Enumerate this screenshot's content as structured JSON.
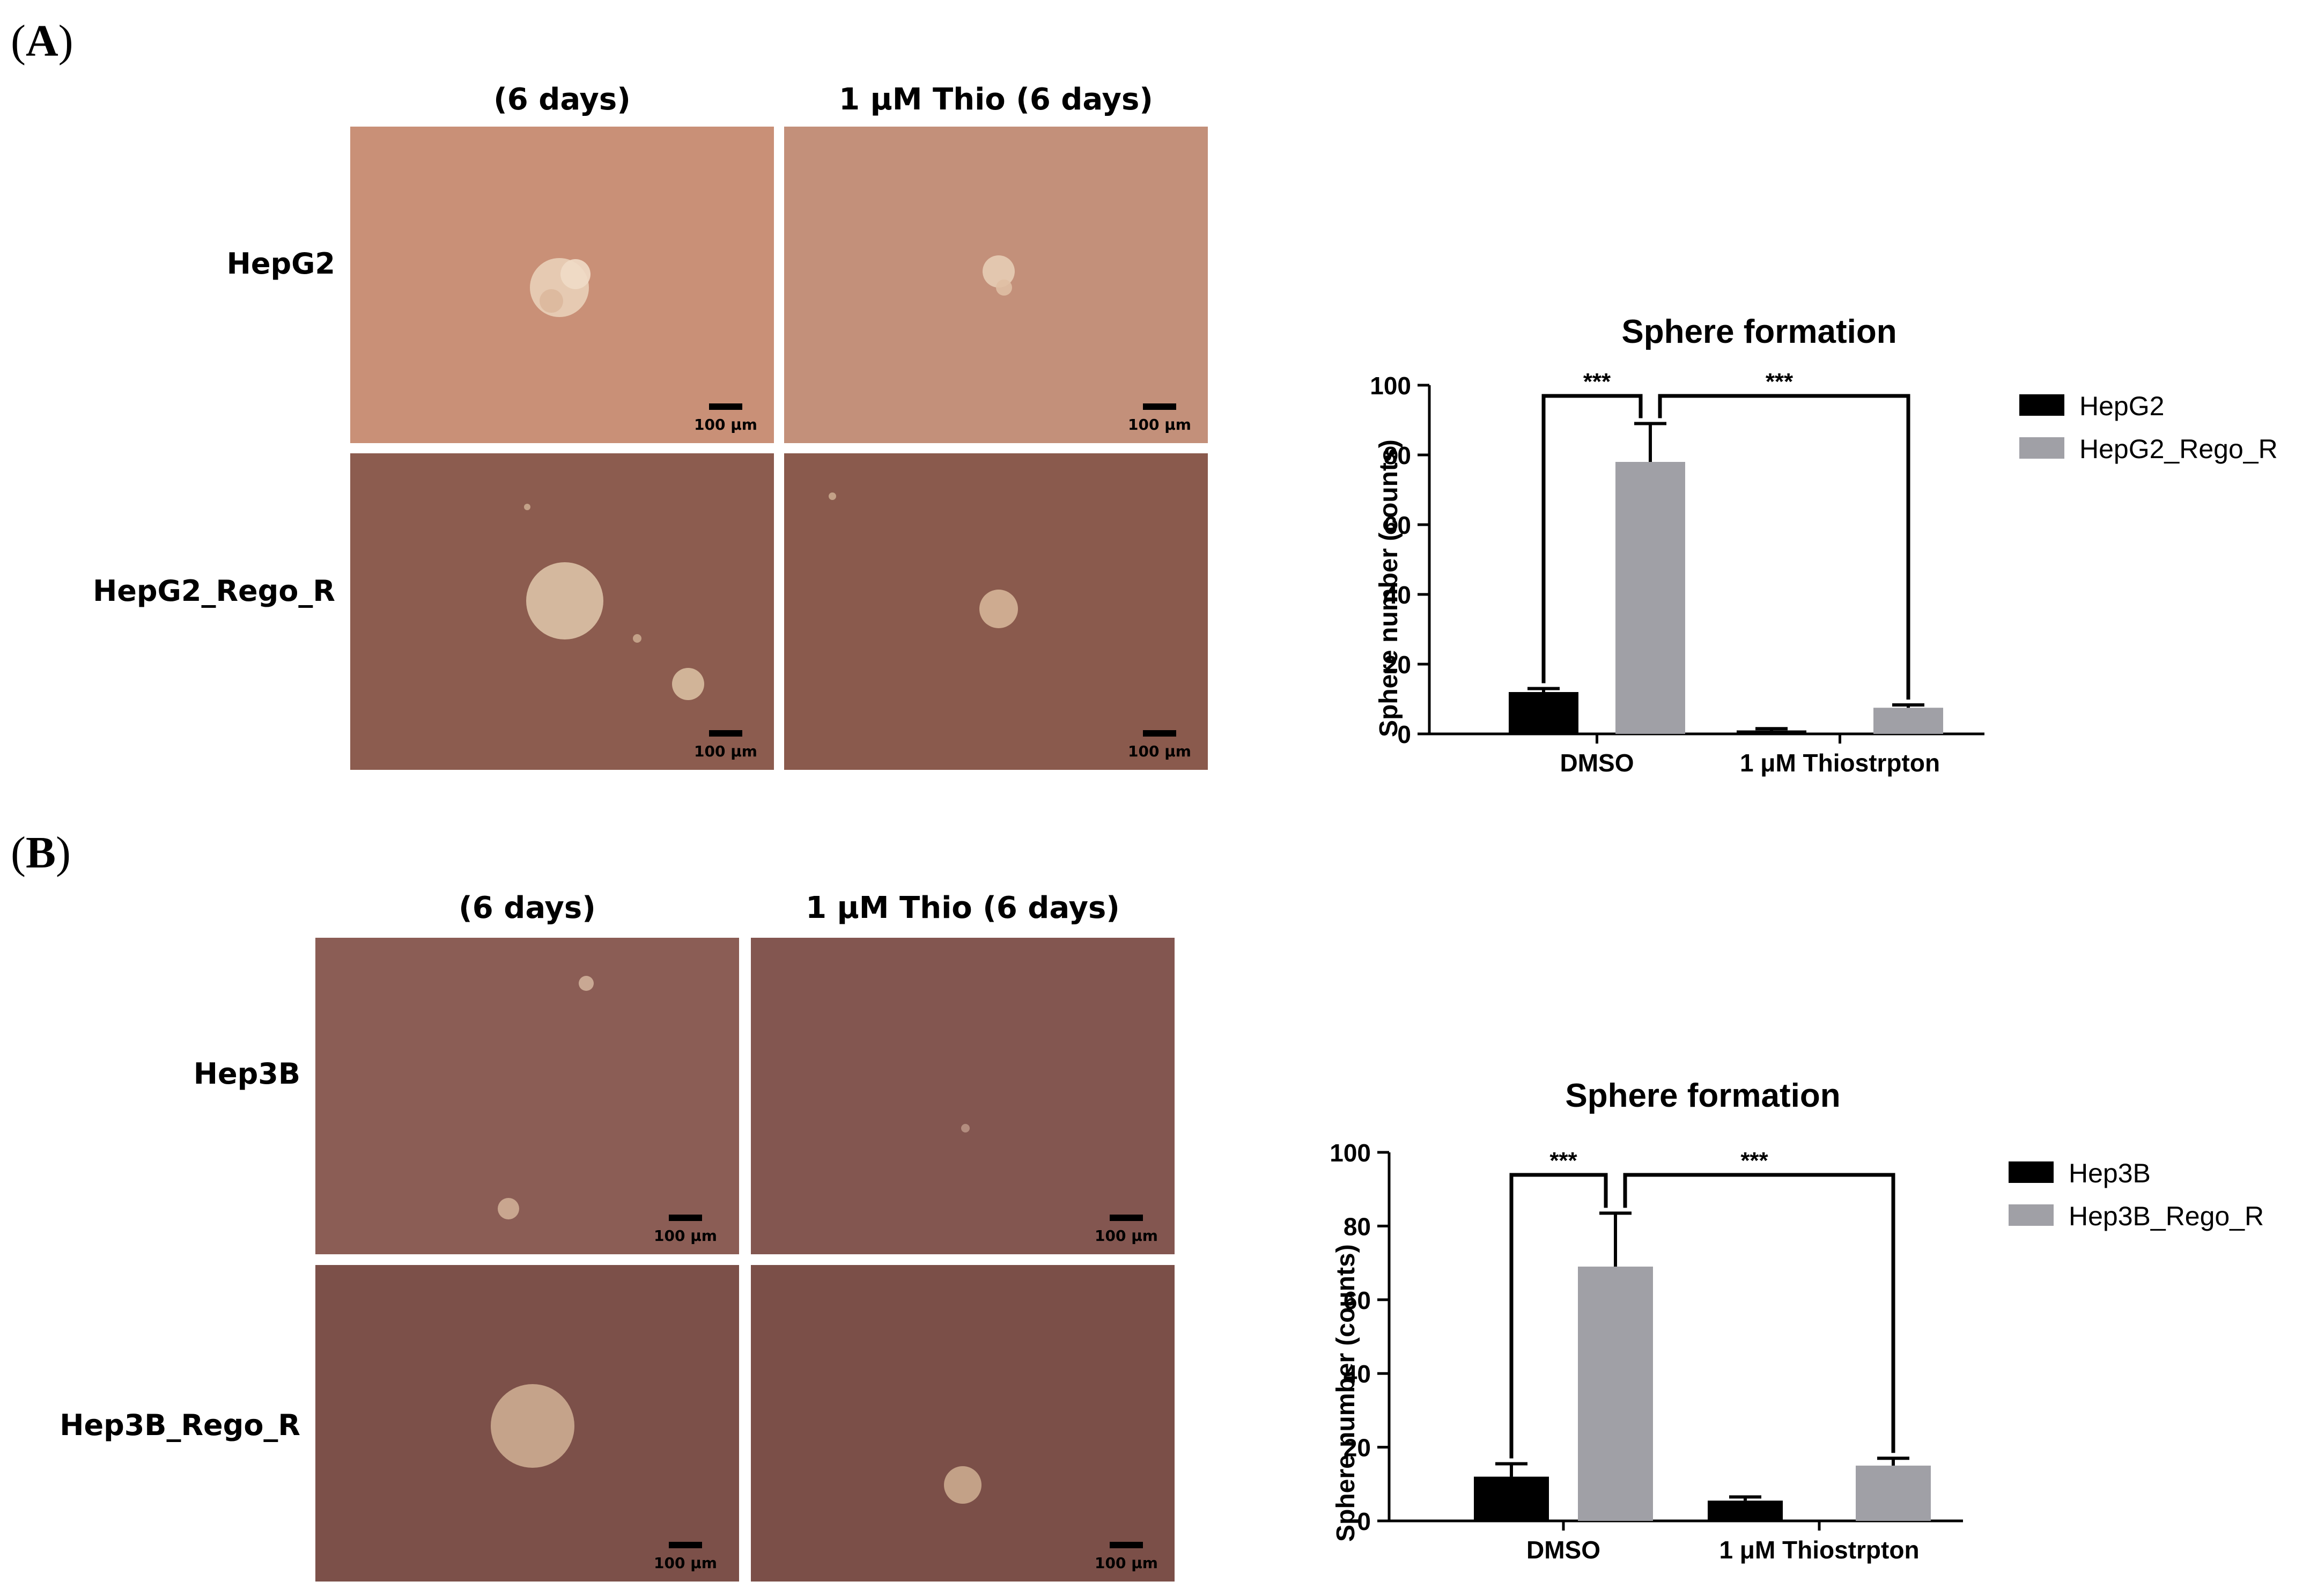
{
  "panels": [
    {
      "letter": "A",
      "columns": [
        "(6 days)",
        "1 μM Thio (6 days)"
      ],
      "rows": [
        "HepG2",
        "HepG2_Rego_R"
      ],
      "scale_label": "100 μm",
      "colors": {
        "top": "#c99077",
        "bottom": "#8c5c4f"
      }
    },
    {
      "letter": "B",
      "columns": [
        "(6 days)",
        "1 μM Thio (6 days)"
      ],
      "rows": [
        "Hep3B",
        "Hep3B_Rego_R"
      ],
      "scale_label": "100 μm",
      "colors": {
        "top": "#8b5d55",
        "bottom": "#7c5049"
      }
    }
  ],
  "chart_data": [
    {
      "type": "bar",
      "title": "Sphere formation",
      "ylabel": "Sphere  number (counts)",
      "xlabel": "",
      "categories": [
        "DMSO",
        "1 μM Thiostrpton"
      ],
      "series": [
        {
          "name": "HepG2",
          "color": "#000000",
          "values": [
            12,
            1
          ],
          "errors": [
            1,
            0.5
          ]
        },
        {
          "name": "HepG2_Rego_R",
          "color": "#a0a0a6",
          "values": [
            78,
            7.5
          ],
          "errors": [
            11,
            0.8
          ]
        }
      ],
      "ylim": [
        0,
        100
      ],
      "yticks": [
        0,
        20,
        40,
        60,
        80,
        100
      ],
      "significance": [
        "***",
        "***"
      ],
      "legend_position": "right",
      "grid": false
    },
    {
      "type": "bar",
      "title": "Sphere formation",
      "ylabel": "Sphere  number (counts)",
      "xlabel": "",
      "categories": [
        "DMSO",
        "1 μM Thiostrpton"
      ],
      "series": [
        {
          "name": "Hep3B",
          "color": "#000000",
          "values": [
            12,
            5.5
          ],
          "errors": [
            3.5,
            1
          ]
        },
        {
          "name": "Hep3B_Rego_R",
          "color": "#a0a0a6",
          "values": [
            69,
            15
          ],
          "errors": [
            14.5,
            2
          ]
        }
      ],
      "ylim": [
        0,
        100
      ],
      "yticks": [
        0,
        20,
        40,
        60,
        80,
        100
      ],
      "significance": [
        "***",
        "***"
      ],
      "legend_position": "right",
      "grid": false
    }
  ]
}
